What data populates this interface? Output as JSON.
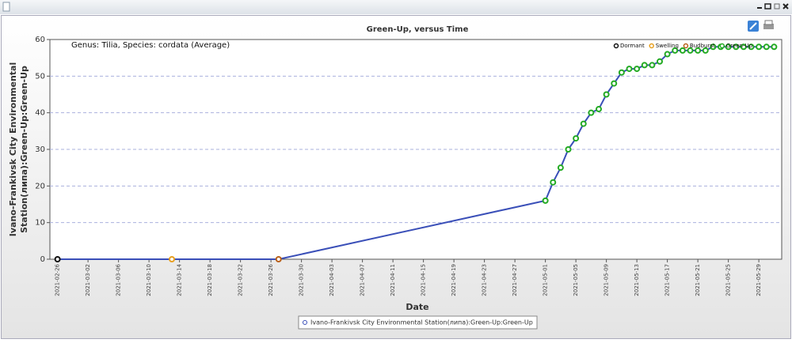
{
  "chart_data": {
    "type": "line",
    "title": "Green-Up, versus Time",
    "annotation": "Genus: Tilia, Species: cordata (Average)",
    "x_label": "Date",
    "y_label_lines": [
      "Ivano-Frankivsk City Environmental",
      "Station(липа):Green-Up:Green-Up"
    ],
    "line": {
      "name": "Ivano-Frankivsk City Environmental Station(липа):Green-Up:Green-Up",
      "color": "#3a4fb8"
    },
    "series": [
      {
        "name": "Dormant",
        "color": "#111111",
        "x": [
          "2021-02-26"
        ],
        "values": [
          0
        ]
      },
      {
        "name": "Swelling",
        "color": "#e8a020",
        "x": [
          "2021-03-13"
        ],
        "values": [
          0
        ]
      },
      {
        "name": "Budburst",
        "color": "#b8601a",
        "x": [
          "2021-03-27"
        ],
        "values": [
          0
        ]
      },
      {
        "name": "Green-Up",
        "color": "#22aa22",
        "x": [
          "2021-05-01",
          "2021-05-02",
          "2021-05-03",
          "2021-05-04",
          "2021-05-05",
          "2021-05-06",
          "2021-05-07",
          "2021-05-08",
          "2021-05-09",
          "2021-05-10",
          "2021-05-11",
          "2021-05-12",
          "2021-05-13",
          "2021-05-14",
          "2021-05-15",
          "2021-05-16",
          "2021-05-17",
          "2021-05-18",
          "2021-05-19",
          "2021-05-20",
          "2021-05-21",
          "2021-05-22",
          "2021-05-23",
          "2021-05-24",
          "2021-05-25",
          "2021-05-26",
          "2021-05-27",
          "2021-05-28",
          "2021-05-29",
          "2021-05-30",
          "2021-05-31"
        ],
        "values": [
          16,
          21,
          25,
          30,
          33,
          37,
          40,
          41,
          45,
          48,
          51,
          52,
          52,
          53,
          53,
          54,
          56,
          57,
          57,
          57,
          57,
          57,
          58,
          58,
          58,
          58,
          58,
          58,
          58,
          58,
          58
        ]
      }
    ],
    "xlim": [
      "2021-02-25",
      "2021-06-01"
    ],
    "xticks": [
      "2021-02-26",
      "2021-03-02",
      "2021-03-06",
      "2021-03-10",
      "2021-03-14",
      "2021-03-18",
      "2021-03-22",
      "2021-03-26",
      "2021-03-30",
      "2021-04-03",
      "2021-04-07",
      "2021-04-11",
      "2021-04-15",
      "2021-04-19",
      "2021-04-23",
      "2021-04-27",
      "2021-05-01",
      "2021-05-05",
      "2021-05-09",
      "2021-05-13",
      "2021-05-17",
      "2021-05-21",
      "2021-05-25",
      "2021-05-29"
    ],
    "ylim": [
      0,
      60
    ],
    "yticks": [
      0,
      10,
      20,
      30,
      40,
      50,
      60
    ],
    "grid": true,
    "legend": "top-right"
  }
}
